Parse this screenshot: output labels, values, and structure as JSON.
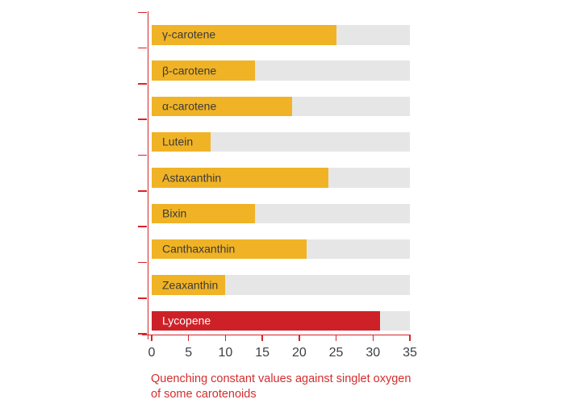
{
  "colors": {
    "bar": "#f0b326",
    "bar_highlight": "#ce2127",
    "track": "#e6e6e6",
    "axis": "#d4252b",
    "caption": "#d32e2e",
    "bar_label": "#3a3a3a",
    "bar_label_on_highlight": "#ffffff",
    "tick_label": "#3c4043"
  },
  "chart_data": {
    "type": "bar",
    "orientation": "horizontal",
    "title": "Quenching constant values against singlet oxygen of some carotenoids",
    "caption_lines": [
      "Quenching constant values against singlet oxygen",
      "of some carotenoids"
    ],
    "categories": [
      "γ-carotene",
      "β-carotene",
      "α-carotene",
      "Lutein",
      "Astaxanthin",
      "Bixin",
      "Canthaxanthin",
      "Zeaxanthin",
      "Lycopene"
    ],
    "values": [
      25,
      14,
      19,
      8,
      24,
      14,
      21,
      10,
      31
    ],
    "highlighted_category": "Lycopene",
    "xlabel": "",
    "ylabel": "",
    "xlim": [
      0,
      35
    ],
    "x_ticks": [
      0,
      5,
      10,
      15,
      20,
      25,
      30,
      35
    ],
    "grid": false,
    "legend": false,
    "track_full_length": 35
  }
}
